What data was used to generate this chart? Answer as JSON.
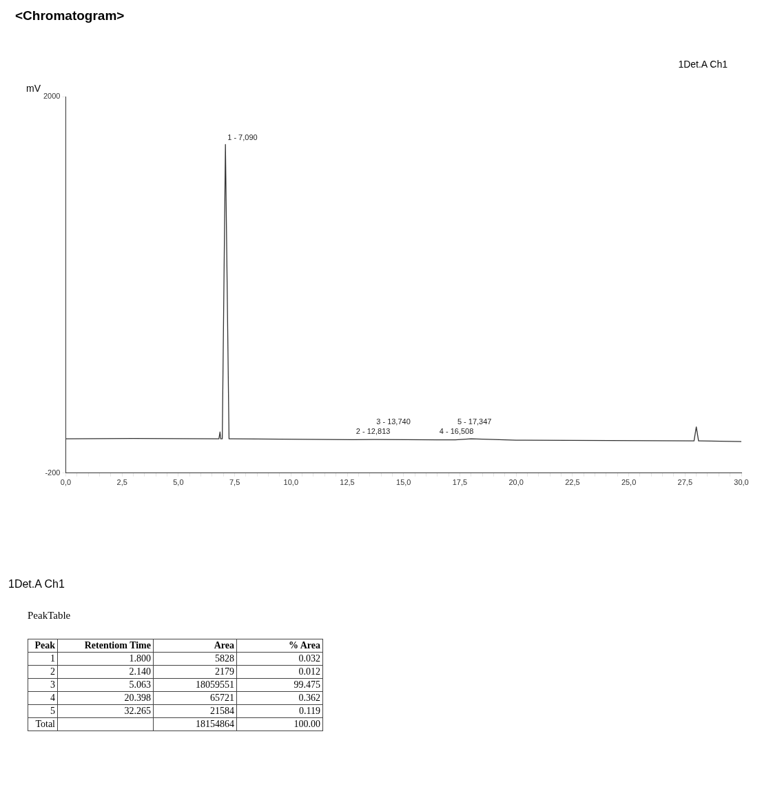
{
  "chart_data": {
    "type": "line",
    "title": "<Chromatogram>",
    "ylabel": "mV",
    "x": [
      0,
      3,
      6.8,
      6.85,
      6.88,
      6.95,
      7.09,
      7.25,
      7.4,
      12.8,
      13.7,
      16.5,
      17.3,
      18,
      20,
      27.9,
      28,
      28.1,
      30
    ],
    "series": [
      {
        "color": "#333333",
        "values": [
          0,
          2,
          0,
          40,
          0,
          0,
          1720,
          0,
          0,
          -5,
          -4,
          -6,
          -6,
          0,
          -8,
          -12,
          70,
          -12,
          -16
        ]
      }
    ],
    "xlim": [
      0,
      30
    ],
    "ylim": [
      -200,
      2000
    ],
    "xticks": [
      {
        "value": 0,
        "label": "0,0"
      },
      {
        "value": 0.5,
        "label": null
      },
      {
        "value": 1,
        "label": null
      },
      {
        "value": 1.5,
        "label": null
      },
      {
        "value": 2,
        "label": null
      },
      {
        "value": 2.5,
        "label": "2,5"
      },
      {
        "value": 3,
        "label": null
      },
      {
        "value": 3.5,
        "label": null
      },
      {
        "value": 4,
        "label": null
      },
      {
        "value": 4.5,
        "label": null
      },
      {
        "value": 5,
        "label": "5,0"
      },
      {
        "value": 5.5,
        "label": null
      },
      {
        "value": 6,
        "label": null
      },
      {
        "value": 6.5,
        "label": null
      },
      {
        "value": 7,
        "label": null
      },
      {
        "value": 7.5,
        "label": "7,5"
      },
      {
        "value": 8,
        "label": null
      },
      {
        "value": 8.5,
        "label": null
      },
      {
        "value": 9,
        "label": null
      },
      {
        "value": 9.5,
        "label": null
      },
      {
        "value": 10,
        "label": "10,0"
      },
      {
        "value": 10.5,
        "label": null
      },
      {
        "value": 11,
        "label": null
      },
      {
        "value": 11.5,
        "label": null
      },
      {
        "value": 12,
        "label": null
      },
      {
        "value": 12.5,
        "label": "12,5"
      },
      {
        "value": 13,
        "label": null
      },
      {
        "value": 13.5,
        "label": null
      },
      {
        "value": 14,
        "label": null
      },
      {
        "value": 14.5,
        "label": null
      },
      {
        "value": 15,
        "label": "15,0"
      },
      {
        "value": 15.5,
        "label": null
      },
      {
        "value": 16,
        "label": null
      },
      {
        "value": 16.5,
        "label": null
      },
      {
        "value": 17,
        "label": null
      },
      {
        "value": 17.5,
        "label": "17,5"
      },
      {
        "value": 18,
        "label": null
      },
      {
        "value": 18.5,
        "label": null
      },
      {
        "value": 19,
        "label": null
      },
      {
        "value": 19.5,
        "label": null
      },
      {
        "value": 20,
        "label": "20,0"
      },
      {
        "value": 20.5,
        "label": null
      },
      {
        "value": 21,
        "label": null
      },
      {
        "value": 21.5,
        "label": null
      },
      {
        "value": 22,
        "label": null
      },
      {
        "value": 22.5,
        "label": "22,5"
      },
      {
        "value": 23,
        "label": null
      },
      {
        "value": 23.5,
        "label": null
      },
      {
        "value": 24,
        "label": null
      },
      {
        "value": 24.5,
        "label": null
      },
      {
        "value": 25,
        "label": "25,0"
      },
      {
        "value": 25.5,
        "label": null
      },
      {
        "value": 26,
        "label": null
      },
      {
        "value": 26.5,
        "label": null
      },
      {
        "value": 27,
        "label": null
      },
      {
        "value": 27.5,
        "label": "27,5"
      },
      {
        "value": 28,
        "label": null
      },
      {
        "value": 28.5,
        "label": null
      },
      {
        "value": 29,
        "label": null
      },
      {
        "value": 29.5,
        "label": null
      },
      {
        "value": 30,
        "label": "30,0"
      }
    ],
    "yticks": [
      -200,
      2000
    ],
    "grid": false,
    "legend": false,
    "marker": "none",
    "line_style": "solid",
    "annotations": [
      {
        "text": "1 - 7,090",
        "x": 7.09,
        "y": 1720
      },
      {
        "text": "2 - 12,813",
        "x": 12.8,
        "y": -5
      },
      {
        "text": "3 - 13,740",
        "x": 13.7,
        "y": -4
      },
      {
        "text": "4 - 16,508",
        "x": 16.5,
        "y": -6
      },
      {
        "text": "5 - 17,347",
        "x": 17.3,
        "y": -6
      },
      "1Det.A Ch1",
      "1Det.A Ch1",
      "PeakTable",
      "Peak\tRetentiom Time\tArea\t% Area",
      "1\t1.800\t5828\t0.032",
      "2\t2.140\t2179\t0.012",
      "3\t5.063\t18059551\t99.475",
      "4\t20.398\t65721\t0.362",
      "5\t32.265\t21584\t0.119",
      "Total\t\t18154864\t100.00"
    ]
  }
}
